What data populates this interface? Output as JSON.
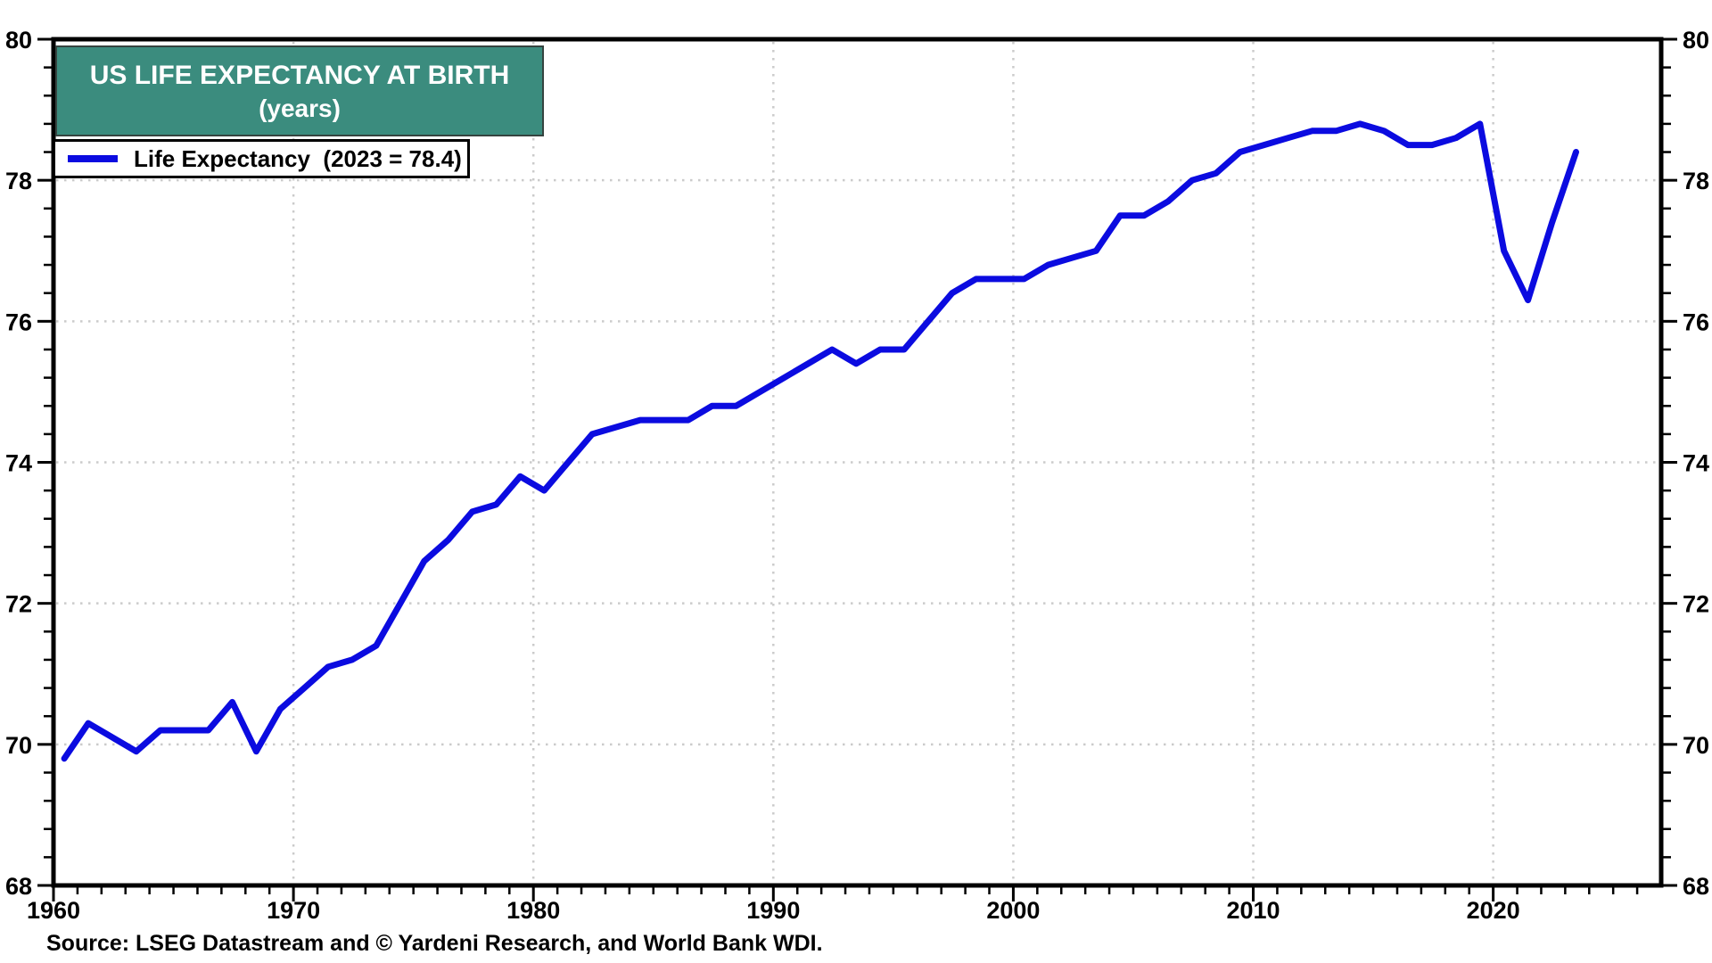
{
  "title": {
    "line1": "US LIFE EXPECTANCY AT BIRTH",
    "line2": "(years)"
  },
  "legend": {
    "label": "Life Expectancy  (2023 = 78.4)"
  },
  "source": "Source: LSEG Datastream and © Yardeni Research, and World Bank WDI.",
  "colors": {
    "line": "#0b0be0",
    "banner": "#3b8c7e",
    "grid": "#cbcbcb",
    "axis": "#000000",
    "title_text": "#ffffff"
  },
  "chart_data": {
    "type": "line",
    "title": "US LIFE EXPECTANCY AT BIRTH (years)",
    "xlabel": "",
    "ylabel": "",
    "xlim": [
      1960,
      2027
    ],
    "ylim": [
      68,
      80
    ],
    "grid": "dotted",
    "legend_position": "top-left",
    "x_major_ticks": [
      1960,
      1970,
      1980,
      1990,
      2000,
      2010,
      2020
    ],
    "y_major_ticks": [
      68,
      70,
      72,
      74,
      76,
      78,
      80
    ],
    "x_minor_step": 1,
    "y_minor_step": 0.4,
    "series": [
      {
        "name": "Life Expectancy",
        "last_point_note": "2023 = 78.4",
        "years": [
          1960,
          1961,
          1962,
          1963,
          1964,
          1965,
          1966,
          1967,
          1968,
          1969,
          1970,
          1971,
          1972,
          1973,
          1974,
          1975,
          1976,
          1977,
          1978,
          1979,
          1980,
          1981,
          1982,
          1983,
          1984,
          1985,
          1986,
          1987,
          1988,
          1989,
          1990,
          1991,
          1992,
          1993,
          1994,
          1995,
          1996,
          1997,
          1998,
          1999,
          2000,
          2001,
          2002,
          2003,
          2004,
          2005,
          2006,
          2007,
          2008,
          2009,
          2010,
          2011,
          2012,
          2013,
          2014,
          2015,
          2016,
          2017,
          2018,
          2019,
          2020,
          2021,
          2022,
          2023
        ],
        "values": [
          69.8,
          70.3,
          70.1,
          69.9,
          70.2,
          70.2,
          70.2,
          70.6,
          69.9,
          70.5,
          70.8,
          71.1,
          71.2,
          71.4,
          72.0,
          72.6,
          72.9,
          73.3,
          73.4,
          73.8,
          73.6,
          74.0,
          74.4,
          74.5,
          74.6,
          74.6,
          74.6,
          74.8,
          74.8,
          75.0,
          75.2,
          75.4,
          75.6,
          75.4,
          75.6,
          75.6,
          76.0,
          76.4,
          76.6,
          76.6,
          76.6,
          76.8,
          76.9,
          77.0,
          77.5,
          77.5,
          77.7,
          78.0,
          78.1,
          78.4,
          78.5,
          78.6,
          78.7,
          78.7,
          78.8,
          78.7,
          78.5,
          78.5,
          78.6,
          78.8,
          77.0,
          76.3,
          77.4,
          78.4
        ]
      }
    ]
  }
}
